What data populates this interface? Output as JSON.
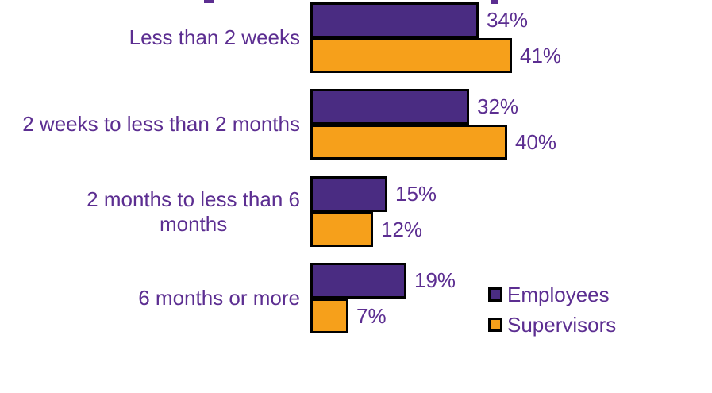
{
  "chart_data": {
    "type": "bar",
    "orientation": "horizontal",
    "title": "",
    "xlabel": "",
    "ylabel": "",
    "xlim": [
      0,
      45
    ],
    "grid": false,
    "value_suffix": "%",
    "data_labels_shown": true,
    "legend_position": "bottom-right",
    "categories": [
      "Less than 2 weeks",
      "2 weeks to less than 2 months",
      "2 months to less than 6\nmonths",
      "6 months or more"
    ],
    "series": [
      {
        "name": "Employees",
        "color": "#4A2C82",
        "values": [
          34,
          32,
          15,
          19
        ]
      },
      {
        "name": "Supervisors",
        "color": "#F6A01B",
        "values": [
          41,
          40,
          12,
          7
        ]
      }
    ]
  },
  "legend": {
    "items": [
      {
        "label": "Employees",
        "color": "#4A2C82"
      },
      {
        "label": "Supervisors",
        "color": "#F6A01B"
      }
    ]
  },
  "colors": {
    "bar_border": "#000000",
    "text": "#5C2E91",
    "background": "#FFFFFF"
  }
}
